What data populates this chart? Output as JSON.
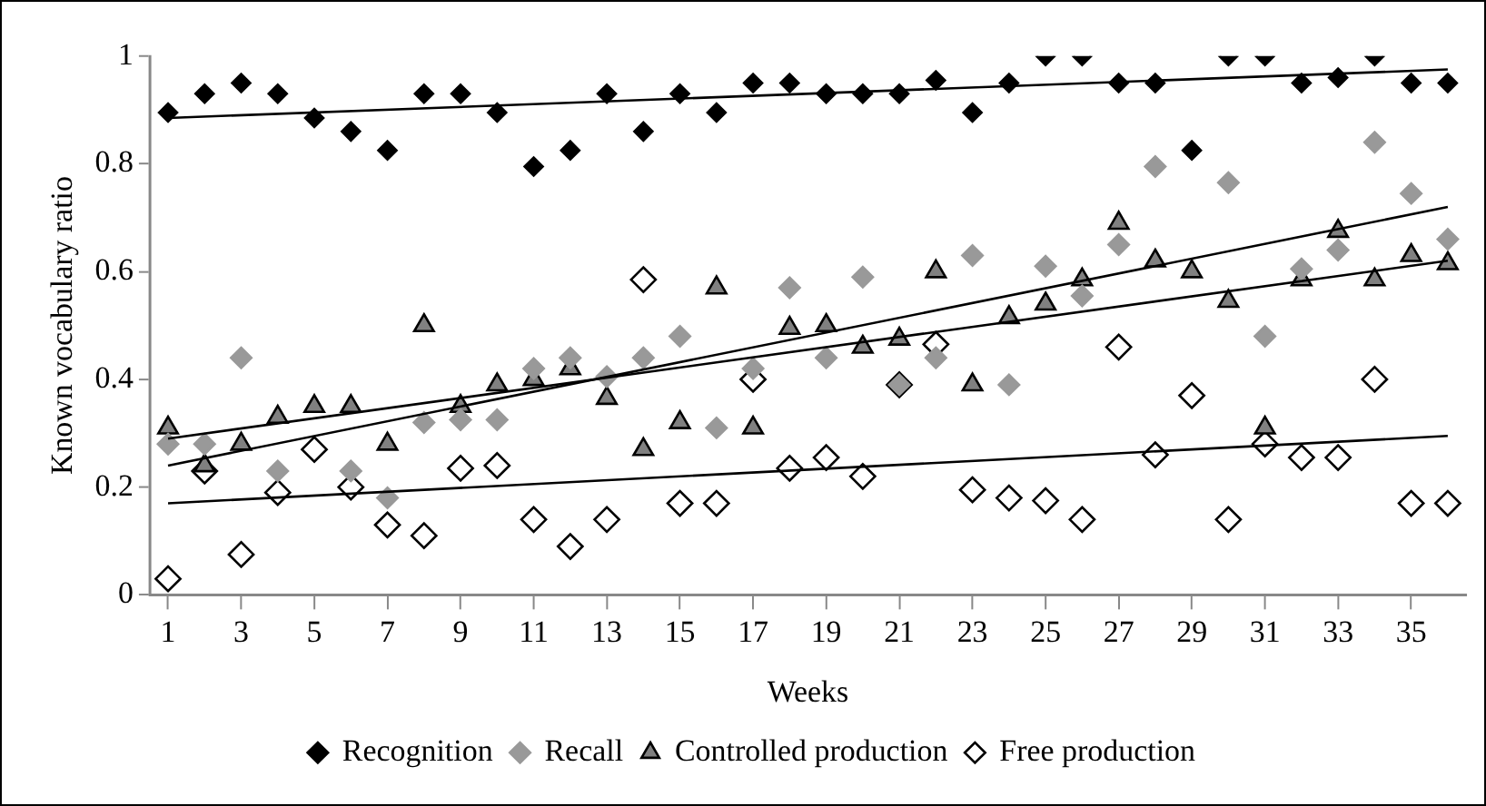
{
  "chart_data": {
    "type": "scatter",
    "xlabel": "Weeks",
    "ylabel": "Known vocabulary ratio",
    "x": [
      1,
      2,
      3,
      4,
      5,
      6,
      7,
      8,
      9,
      10,
      11,
      12,
      13,
      14,
      15,
      16,
      17,
      18,
      19,
      20,
      21,
      22,
      23,
      24,
      25,
      26,
      27,
      28,
      29,
      30,
      31,
      32,
      33,
      34,
      35,
      36
    ],
    "xlim": [
      0.5,
      36.5
    ],
    "xticks": [
      1,
      3,
      5,
      7,
      9,
      11,
      13,
      15,
      17,
      19,
      21,
      23,
      25,
      27,
      29,
      31,
      33,
      35
    ],
    "ylim": [
      0,
      1
    ],
    "yticks": [
      0,
      0.2,
      0.4,
      0.6,
      0.8,
      1
    ],
    "grid": false,
    "legend": "bottom",
    "series": [
      {
        "name": "Recognition",
        "color": "#000000",
        "marker": "diamond",
        "values": [
          0.895,
          0.93,
          0.95,
          0.93,
          0.885,
          0.86,
          0.825,
          0.93,
          0.93,
          0.895,
          0.795,
          0.825,
          0.93,
          0.86,
          0.93,
          0.895,
          0.95,
          0.95,
          0.93,
          0.93,
          0.93,
          0.955,
          0.895,
          0.95,
          1,
          1,
          0.95,
          0.95,
          0.825,
          1,
          1,
          0.95,
          0.96,
          1,
          0.95,
          0.95
        ]
      },
      {
        "name": "Recall",
        "color": "#999999",
        "marker": "diamond",
        "values": [
          0.28,
          0.28,
          0.44,
          0.23,
          null,
          0.23,
          0.18,
          0.32,
          0.325,
          0.325,
          0.42,
          0.44,
          0.405,
          0.44,
          0.48,
          0.31,
          0.42,
          0.57,
          0.44,
          0.59,
          0.39,
          0.44,
          0.63,
          0.39,
          0.61,
          0.555,
          0.65,
          0.795,
          null,
          0.765,
          0.48,
          0.605,
          0.64,
          0.84,
          0.745,
          0.66
        ]
      },
      {
        "name": "Controlled production",
        "color": "#808080",
        "marker": "triangle",
        "values": [
          0.31,
          0.24,
          0.28,
          0.33,
          0.35,
          0.35,
          0.28,
          0.5,
          0.35,
          0.39,
          0.4,
          0.42,
          0.365,
          0.27,
          0.32,
          0.57,
          0.31,
          0.495,
          0.5,
          0.46,
          0.475,
          0.6,
          0.39,
          0.515,
          0.54,
          0.585,
          0.69,
          0.62,
          0.6,
          0.545,
          0.31,
          0.585,
          0.675,
          0.585,
          0.63,
          0.615
        ]
      },
      {
        "name": "Free production",
        "color": "#ffffff",
        "marker": "diamond",
        "values": [
          0.03,
          0.23,
          0.075,
          0.19,
          0.27,
          0.2,
          0.13,
          0.11,
          0.235,
          0.24,
          0.14,
          0.09,
          0.14,
          0.585,
          0.17,
          0.17,
          0.4,
          0.235,
          0.255,
          0.22,
          0.39,
          0.465,
          0.195,
          0.18,
          0.175,
          0.14,
          0.46,
          0.26,
          0.37,
          0.14,
          0.28,
          0.255,
          0.255,
          0.4,
          0.17,
          0.17
        ]
      },
      {
        "type": "line",
        "color": "#000000",
        "values": [
          0.885,
          null,
          null,
          null,
          null,
          null,
          null,
          null,
          null,
          null,
          null,
          null,
          null,
          null,
          null,
          null,
          null,
          null,
          null,
          null,
          null,
          null,
          null,
          null,
          null,
          null,
          null,
          null,
          null,
          null,
          null,
          null,
          null,
          null,
          null,
          0.975
        ]
      },
      {
        "type": "line",
        "color": "#000000",
        "values": [
          0.24,
          null,
          null,
          null,
          null,
          null,
          null,
          null,
          null,
          null,
          null,
          null,
          null,
          null,
          null,
          null,
          null,
          null,
          null,
          null,
          null,
          null,
          null,
          null,
          null,
          null,
          null,
          null,
          null,
          null,
          null,
          null,
          null,
          null,
          null,
          0.72
        ]
      },
      {
        "type": "line",
        "color": "#000000",
        "values": [
          0.29,
          null,
          null,
          null,
          null,
          null,
          null,
          null,
          null,
          null,
          null,
          null,
          null,
          null,
          null,
          null,
          null,
          null,
          null,
          null,
          null,
          null,
          null,
          null,
          null,
          null,
          null,
          null,
          null,
          null,
          null,
          null,
          null,
          null,
          null,
          0.62
        ]
      },
      {
        "type": "line",
        "color": "#000000",
        "values": [
          0.17,
          null,
          null,
          null,
          null,
          null,
          null,
          null,
          null,
          null,
          null,
          null,
          null,
          null,
          null,
          null,
          null,
          null,
          null,
          null,
          null,
          null,
          null,
          null,
          null,
          null,
          null,
          null,
          null,
          null,
          null,
          null,
          null,
          null,
          null,
          0.295
        ]
      }
    ]
  }
}
